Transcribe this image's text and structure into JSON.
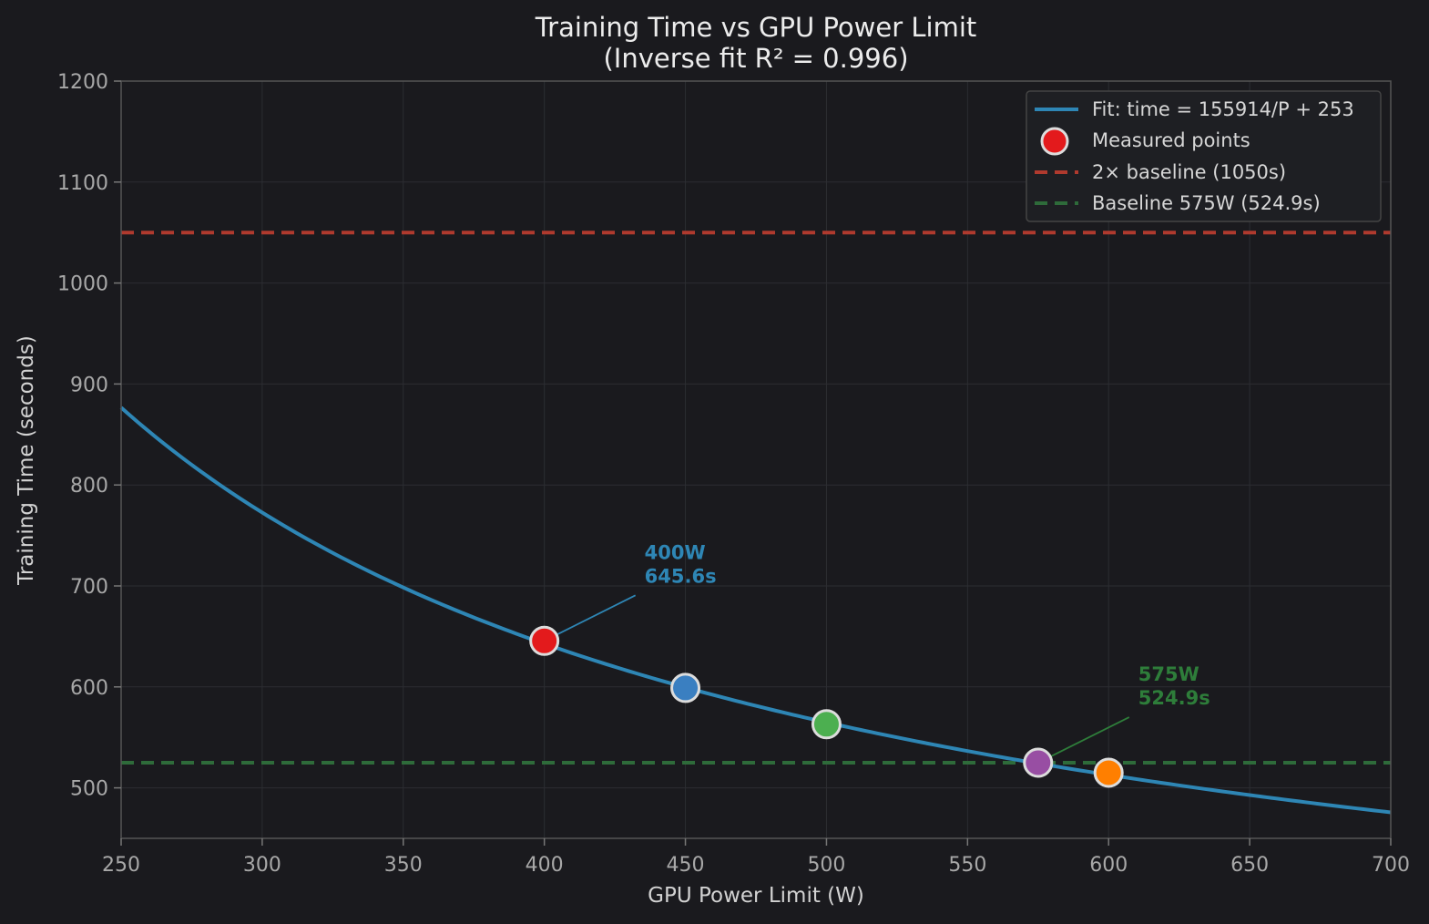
{
  "chart_data": {
    "type": "scatter",
    "title": "Training Time vs GPU Power Limit",
    "subtitle": "(Inverse fit R² = 0.996)",
    "xlabel": "GPU Power Limit (W)",
    "ylabel": "Training Time (seconds)",
    "xlim": [
      250,
      700
    ],
    "ylim": [
      450,
      1200
    ],
    "xticks": [
      250,
      300,
      350,
      400,
      450,
      500,
      550,
      600,
      650,
      700
    ],
    "yticks": [
      500,
      600,
      700,
      800,
      900,
      1000,
      1100,
      1200
    ],
    "grid": true,
    "legend_position": "top-right",
    "fit": {
      "name": "Fit: time = 155914/P + 253",
      "a": 155914,
      "b": 253,
      "color": "#2e86b5"
    },
    "points": {
      "name": "Measured points",
      "x": [
        400,
        450,
        500,
        575,
        600
      ],
      "y": [
        645.6,
        599,
        563,
        524.9,
        515
      ],
      "colors": [
        "#e31a1c",
        "#3a7fc1",
        "#4caf50",
        "#984ea3",
        "#ff7f00"
      ]
    },
    "reference_lines": [
      {
        "name": "2× baseline (1050s)",
        "y": 1050,
        "color": "#b03a2e"
      },
      {
        "name": "Baseline 575W (524.9s)",
        "y": 524.9,
        "color": "#2e6b3a"
      }
    ],
    "annotations": [
      {
        "line1": "400W",
        "line2": "645.6s",
        "x": 400,
        "y": 645.6,
        "color": "#2e86b5"
      },
      {
        "line1": "575W",
        "line2": "524.9s",
        "x": 575,
        "y": 524.9,
        "color": "#2e7d3a"
      }
    ]
  }
}
